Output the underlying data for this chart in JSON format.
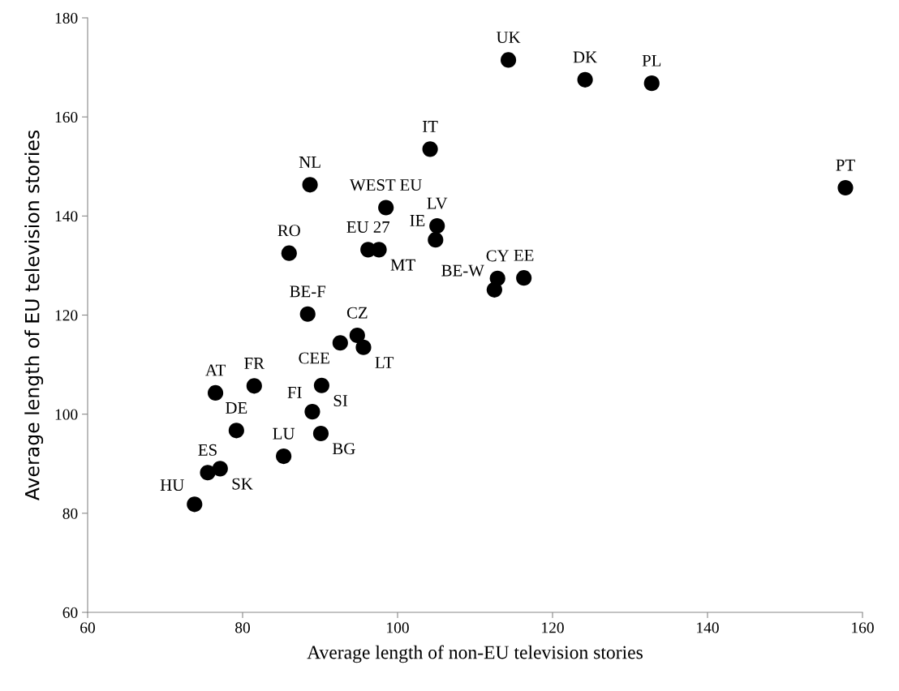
{
  "chart_data": {
    "type": "scatter",
    "xlabel": "Average length of non-EU television stories",
    "ylabel": "Average length of EU television stories",
    "x": [
      114.3,
      124.2,
      132.8,
      157.8,
      104.2,
      88.7,
      98.5,
      105.1,
      104.9,
      86.0,
      96.2,
      97.6,
      112.9,
      112.5,
      116.3,
      88.4,
      94.8,
      95.6,
      92.6,
      76.5,
      81.5,
      90.2,
      89.0,
      79.2,
      90.1,
      85.3,
      75.5,
      77.1,
      73.8
    ],
    "values": [
      171.5,
      167.5,
      166.8,
      145.7,
      153.5,
      146.3,
      141.7,
      138.0,
      135.2,
      132.5,
      133.2,
      133.2,
      127.4,
      125.1,
      127.5,
      120.2,
      115.9,
      113.5,
      114.4,
      104.3,
      105.7,
      105.8,
      100.5,
      96.7,
      96.1,
      91.5,
      88.2,
      89.0,
      81.8
    ],
    "color": "#000000",
    "marker": "circle",
    "xlim": [
      60,
      160
    ],
    "xticks": [
      60,
      80,
      100,
      120,
      140,
      160
    ],
    "ylim": [
      60,
      180
    ],
    "yticks": [
      60,
      80,
      100,
      120,
      140,
      160,
      180
    ],
    "grid": false,
    "legend": false,
    "annotations": [
      {
        "text": "UK",
        "x": 114.3,
        "y": 171.5
      },
      {
        "text": "DK",
        "x": 124.2,
        "y": 167.5
      },
      {
        "text": "PL",
        "x": 132.8,
        "y": 166.8
      },
      {
        "text": "PT",
        "x": 157.8,
        "y": 145.7
      },
      {
        "text": "IT",
        "x": 104.2,
        "y": 153.5
      },
      {
        "text": "NL",
        "x": 88.7,
        "y": 146.3
      },
      {
        "text": "WEST EU",
        "x": 98.5,
        "y": 141.7
      },
      {
        "text": "LV",
        "x": 105.1,
        "y": 138.0
      },
      {
        "text": "IE",
        "x": 104.9,
        "y": 135.2
      },
      {
        "text": "RO",
        "x": 86.0,
        "y": 132.5
      },
      {
        "text": "EU 27",
        "x": 96.2,
        "y": 133.2
      },
      {
        "text": "MT",
        "x": 97.6,
        "y": 133.2
      },
      {
        "text": "CY",
        "x": 112.9,
        "y": 127.4
      },
      {
        "text": "BE-W",
        "x": 112.5,
        "y": 125.1
      },
      {
        "text": "EE",
        "x": 116.3,
        "y": 127.5
      },
      {
        "text": "BE-F",
        "x": 88.4,
        "y": 120.2
      },
      {
        "text": "CZ",
        "x": 94.8,
        "y": 115.9
      },
      {
        "text": "LT",
        "x": 95.6,
        "y": 113.5
      },
      {
        "text": "CEE",
        "x": 92.6,
        "y": 114.4
      },
      {
        "text": "AT",
        "x": 76.5,
        "y": 104.3
      },
      {
        "text": "FR",
        "x": 81.5,
        "y": 105.7
      },
      {
        "text": "SI",
        "x": 90.2,
        "y": 105.8
      },
      {
        "text": "FI",
        "x": 89.0,
        "y": 100.5
      },
      {
        "text": "DE",
        "x": 79.2,
        "y": 96.7
      },
      {
        "text": "BG",
        "x": 90.1,
        "y": 96.1
      },
      {
        "text": "LU",
        "x": 85.3,
        "y": 91.5
      },
      {
        "text": "ES",
        "x": 75.5,
        "y": 88.2
      },
      {
        "text": "SK",
        "x": 77.1,
        "y": 89.0
      },
      {
        "text": "HU",
        "x": 73.8,
        "y": 81.8
      }
    ]
  }
}
